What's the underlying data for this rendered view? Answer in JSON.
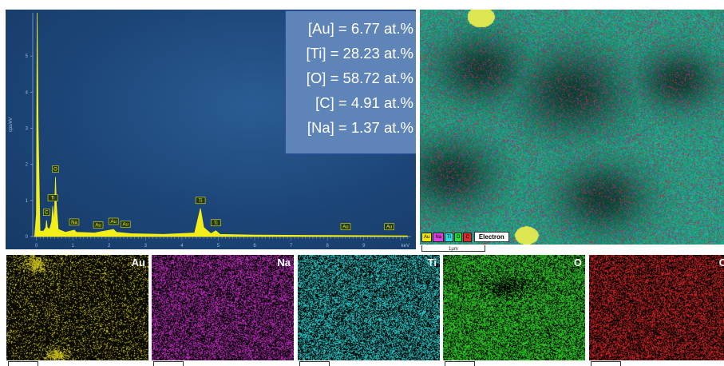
{
  "chart_data": {
    "type": "line",
    "ylabel": "cps/eV",
    "xlabel": "keV",
    "xlim": [
      -0.1,
      10.3
    ],
    "ylim": [
      0,
      6.2
    ],
    "x_ticks": [
      "0",
      "1",
      "2",
      "3",
      "4",
      "5",
      "6",
      "7",
      "8",
      "9"
    ],
    "y_ticks": [
      "0",
      "1",
      "2",
      "3",
      "4",
      "5"
    ],
    "spectrum": [
      [
        -0.05,
        0
      ],
      [
        0.0,
        0.6
      ],
      [
        0.02,
        6.2
      ],
      [
        0.05,
        3.0
      ],
      [
        0.1,
        0.15
      ],
      [
        0.2,
        0.15
      ],
      [
        0.26,
        0.25
      ],
      [
        0.28,
        0.45
      ],
      [
        0.3,
        0.25
      ],
      [
        0.36,
        0.2
      ],
      [
        0.42,
        0.4
      ],
      [
        0.45,
        0.85
      ],
      [
        0.48,
        0.4
      ],
      [
        0.5,
        0.7
      ],
      [
        0.525,
        1.65
      ],
      [
        0.55,
        0.9
      ],
      [
        0.6,
        0.2
      ],
      [
        0.8,
        0.12
      ],
      [
        1.04,
        0.18
      ],
      [
        1.1,
        0.12
      ],
      [
        1.6,
        0.1
      ],
      [
        2.12,
        0.2
      ],
      [
        2.2,
        0.12
      ],
      [
        2.6,
        0.08
      ],
      [
        3.5,
        0.06
      ],
      [
        4.35,
        0.1
      ],
      [
        4.51,
        0.78
      ],
      [
        4.6,
        0.25
      ],
      [
        4.8,
        0.08
      ],
      [
        4.93,
        0.16
      ],
      [
        5.05,
        0.06
      ],
      [
        6,
        0.04
      ],
      [
        8,
        0.03
      ],
      [
        10.2,
        0.02
      ]
    ],
    "peak_labels": [
      {
        "label": "C",
        "x": 0.28,
        "y": 0.45
      },
      {
        "label": "Ti",
        "x": 0.45,
        "y": 0.85
      },
      {
        "label": "O",
        "x": 0.525,
        "y": 1.65
      },
      {
        "label": "Na",
        "x": 1.04,
        "y": 0.18
      },
      {
        "label": "Au",
        "x": 1.7,
        "y": 0.1
      },
      {
        "label": "Au",
        "x": 2.12,
        "y": 0.2
      },
      {
        "label": "Au",
        "x": 2.45,
        "y": 0.12
      },
      {
        "label": "Ti",
        "x": 4.51,
        "y": 0.78
      },
      {
        "label": "Ti",
        "x": 4.93,
        "y": 0.16
      },
      {
        "label": "Au",
        "x": 8.5,
        "y": 0.05
      },
      {
        "label": "Au",
        "x": 9.7,
        "y": 0.05
      }
    ]
  },
  "stats": [
    "[Au] = 6.77 at.%",
    "[Ti] = 28.23 at.%",
    "[O] = 58.72 at.%",
    "[C] = 4.91 at.%",
    "[Na] = 1.37 at.%"
  ],
  "overlay": {
    "legend": [
      "Au",
      "Na",
      "Ti",
      "O",
      "C"
    ],
    "legend_colors": [
      "#f5e60f",
      "#e040e0",
      "#2ed8d8",
      "#2fd83a",
      "#e02a2a"
    ],
    "electron_label": "Electron",
    "scale_label": "1µm"
  },
  "maps": [
    {
      "label": "Au",
      "color": "#e6dc1e"
    },
    {
      "label": "Na",
      "color": "#c832c8"
    },
    {
      "label": "Ti",
      "color": "#2ee0e0"
    },
    {
      "label": "O",
      "color": "#32dc28"
    },
    {
      "label": "C",
      "color": "#dc2828"
    }
  ]
}
